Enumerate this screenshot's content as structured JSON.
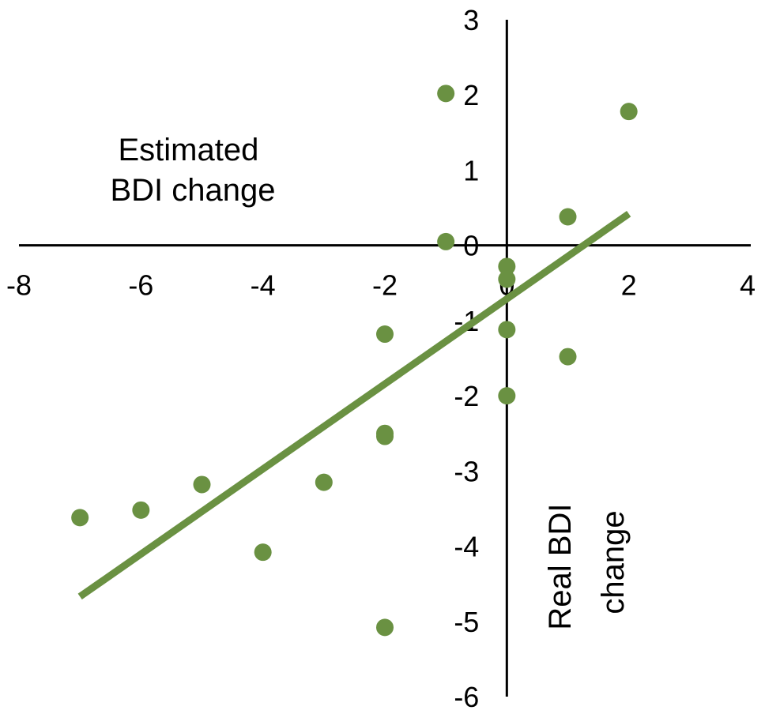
{
  "chart_data": {
    "type": "scatter",
    "title": "",
    "xlabel": "Real BDI change",
    "ylabel_lines": [
      "Estimated",
      "BDI change"
    ],
    "xlabel_lines": [
      "Real BDI",
      "change"
    ],
    "xlim": [
      -8,
      4
    ],
    "ylim": [
      -6,
      3
    ],
    "x_ticks": [
      "-8",
      "-6",
      "-4",
      "-2",
      "0",
      "2",
      "4"
    ],
    "y_ticks": [
      "3",
      "2",
      "1",
      "0",
      "-1",
      "-2",
      "-3",
      "-4",
      "-5",
      "-6"
    ],
    "x_tick_values": [
      -8,
      -6,
      -4,
      -2,
      0,
      2,
      4
    ],
    "y_tick_values": [
      3,
      2,
      1,
      0,
      -1,
      -2,
      -3,
      -4,
      -5,
      -6
    ],
    "grid": false,
    "legend": false,
    "point_color": "#6a9142",
    "trendline_color": "#6a9142",
    "axis_color": "#000000",
    "series": [
      {
        "points": [
          {
            "x": -7,
            "y": -3.62
          },
          {
            "x": -6,
            "y": -3.52
          },
          {
            "x": -5,
            "y": -3.18
          },
          {
            "x": -4,
            "y": -4.08
          },
          {
            "x": -3,
            "y": -3.15
          },
          {
            "x": -2,
            "y": -1.18
          },
          {
            "x": -2,
            "y": -2.5
          },
          {
            "x": -2,
            "y": -2.54
          },
          {
            "x": -2,
            "y": -5.08
          },
          {
            "x": -1,
            "y": 2.02
          },
          {
            "x": -1,
            "y": 0.05
          },
          {
            "x": 0,
            "y": -0.28
          },
          {
            "x": 0,
            "y": -0.45
          },
          {
            "x": 0,
            "y": -1.12
          },
          {
            "x": 0,
            "y": -2.0
          },
          {
            "x": 1,
            "y": 0.38
          },
          {
            "x": 1,
            "y": -1.48
          },
          {
            "x": 2,
            "y": 1.78
          }
        ]
      }
    ],
    "trendline": {
      "x1": -7,
      "y1": -4.67,
      "x2": 2,
      "y2": 0.42
    }
  }
}
